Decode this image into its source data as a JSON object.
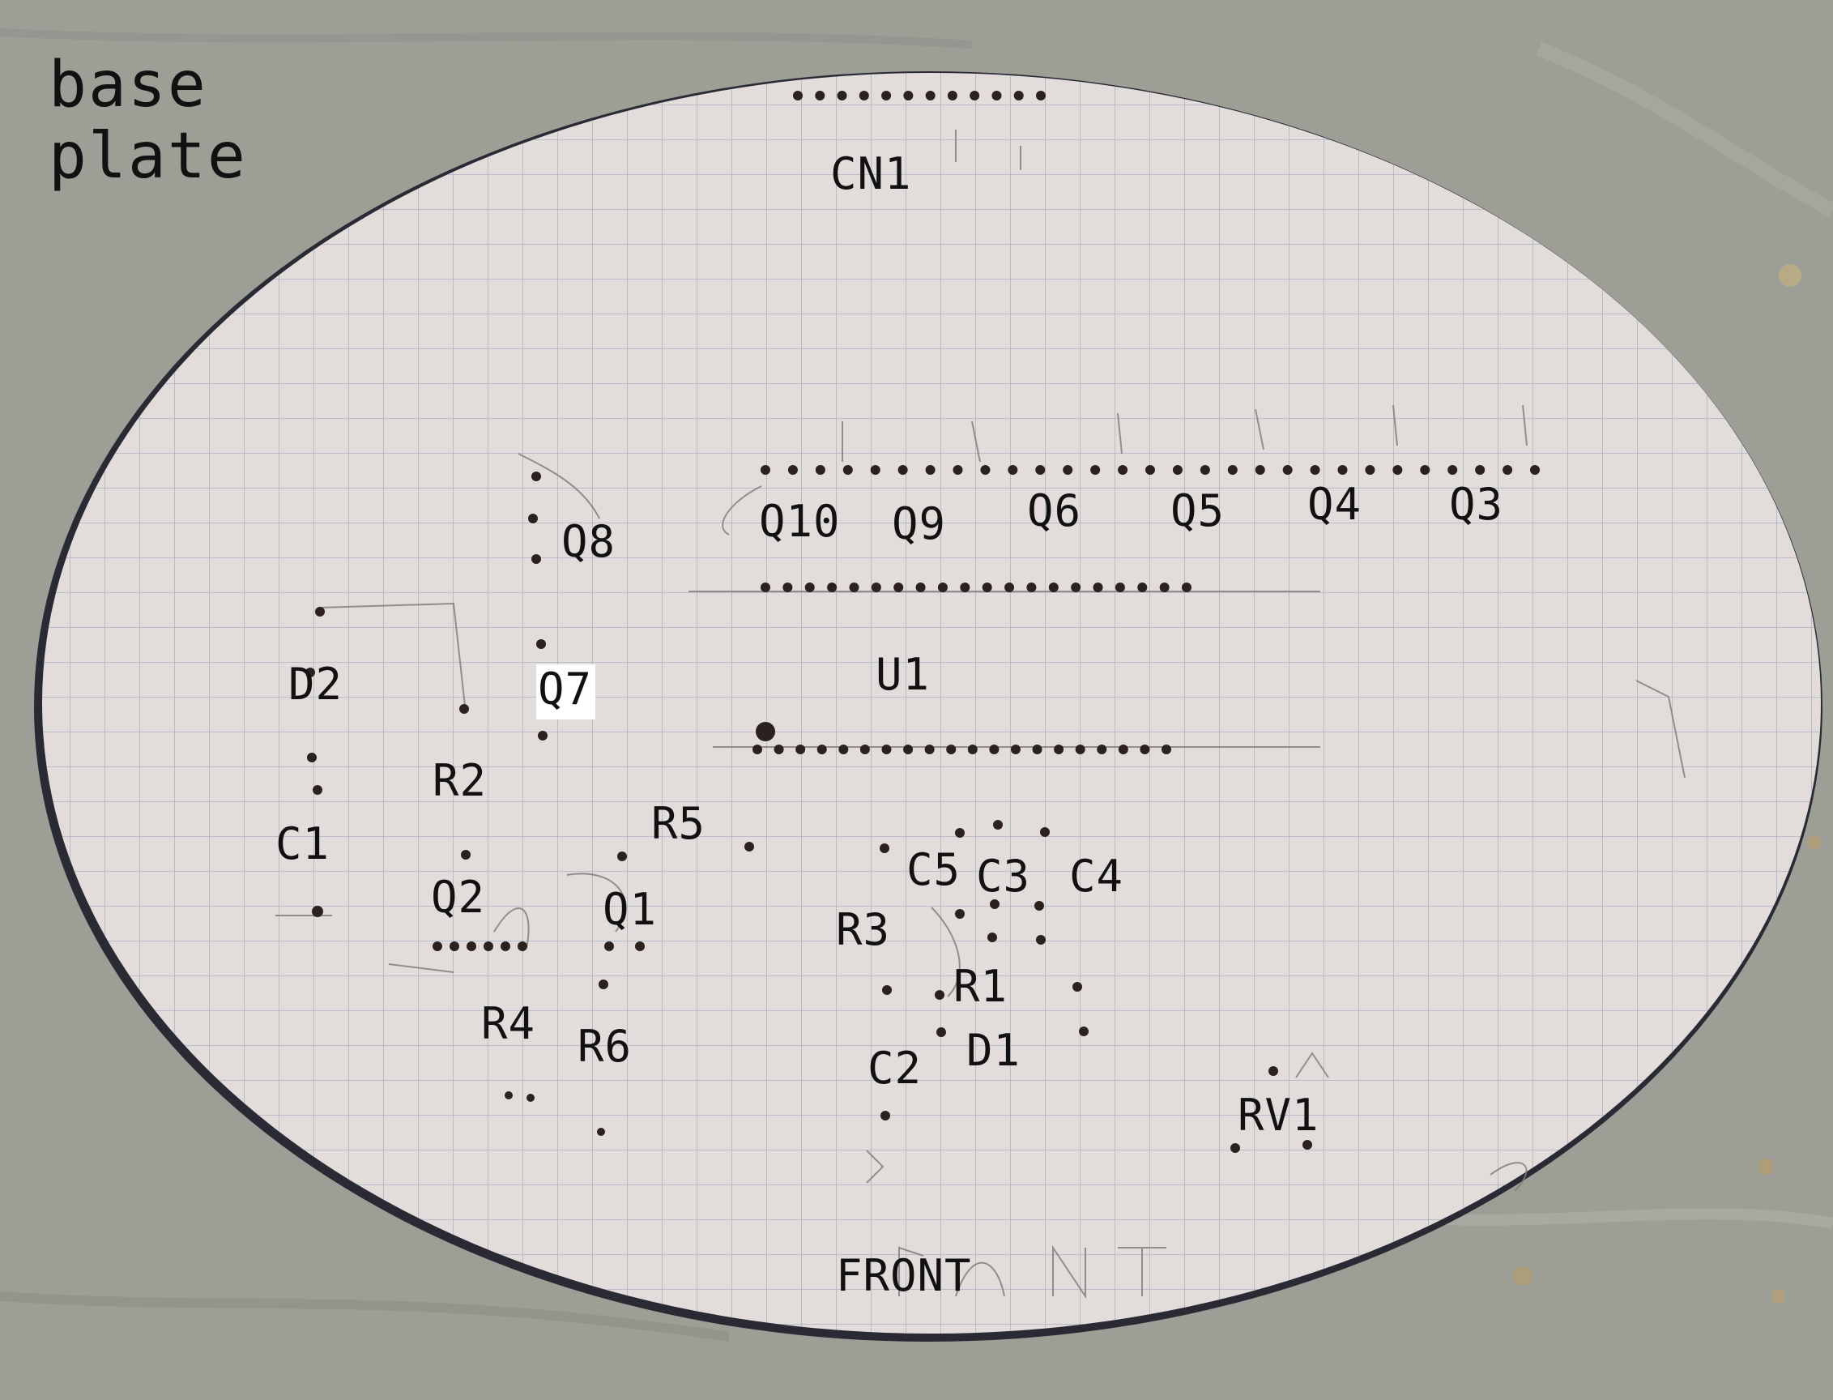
{
  "title": {
    "line1": "base",
    "line2": "plate"
  },
  "labels": {
    "cn1": "CN1",
    "q10": "Q10",
    "q9": "Q9",
    "q6": "Q6",
    "q5": "Q5",
    "q4": "Q4",
    "q3": "Q3",
    "q8": "Q8",
    "u1": "U1",
    "d2": "D2",
    "q7": "Q7",
    "r2": "R2",
    "r5": "R5",
    "c1": "C1",
    "c5": "C5",
    "c3": "C3",
    "c4": "C4",
    "q2": "Q2",
    "q1": "Q1",
    "r3": "R3",
    "r1": "R1",
    "r4": "R4",
    "r6": "R6",
    "c2": "C2",
    "d1": "D1",
    "rv1": "RV1",
    "front": "FRONT"
  },
  "colors": {
    "background": "#9d9e96",
    "plate": "#e2dcdb",
    "grid": "#a9b4c3",
    "edge": "#2a2a35",
    "label": "#111111",
    "hole": "#2b2220",
    "pencil": "#7d7a78"
  }
}
